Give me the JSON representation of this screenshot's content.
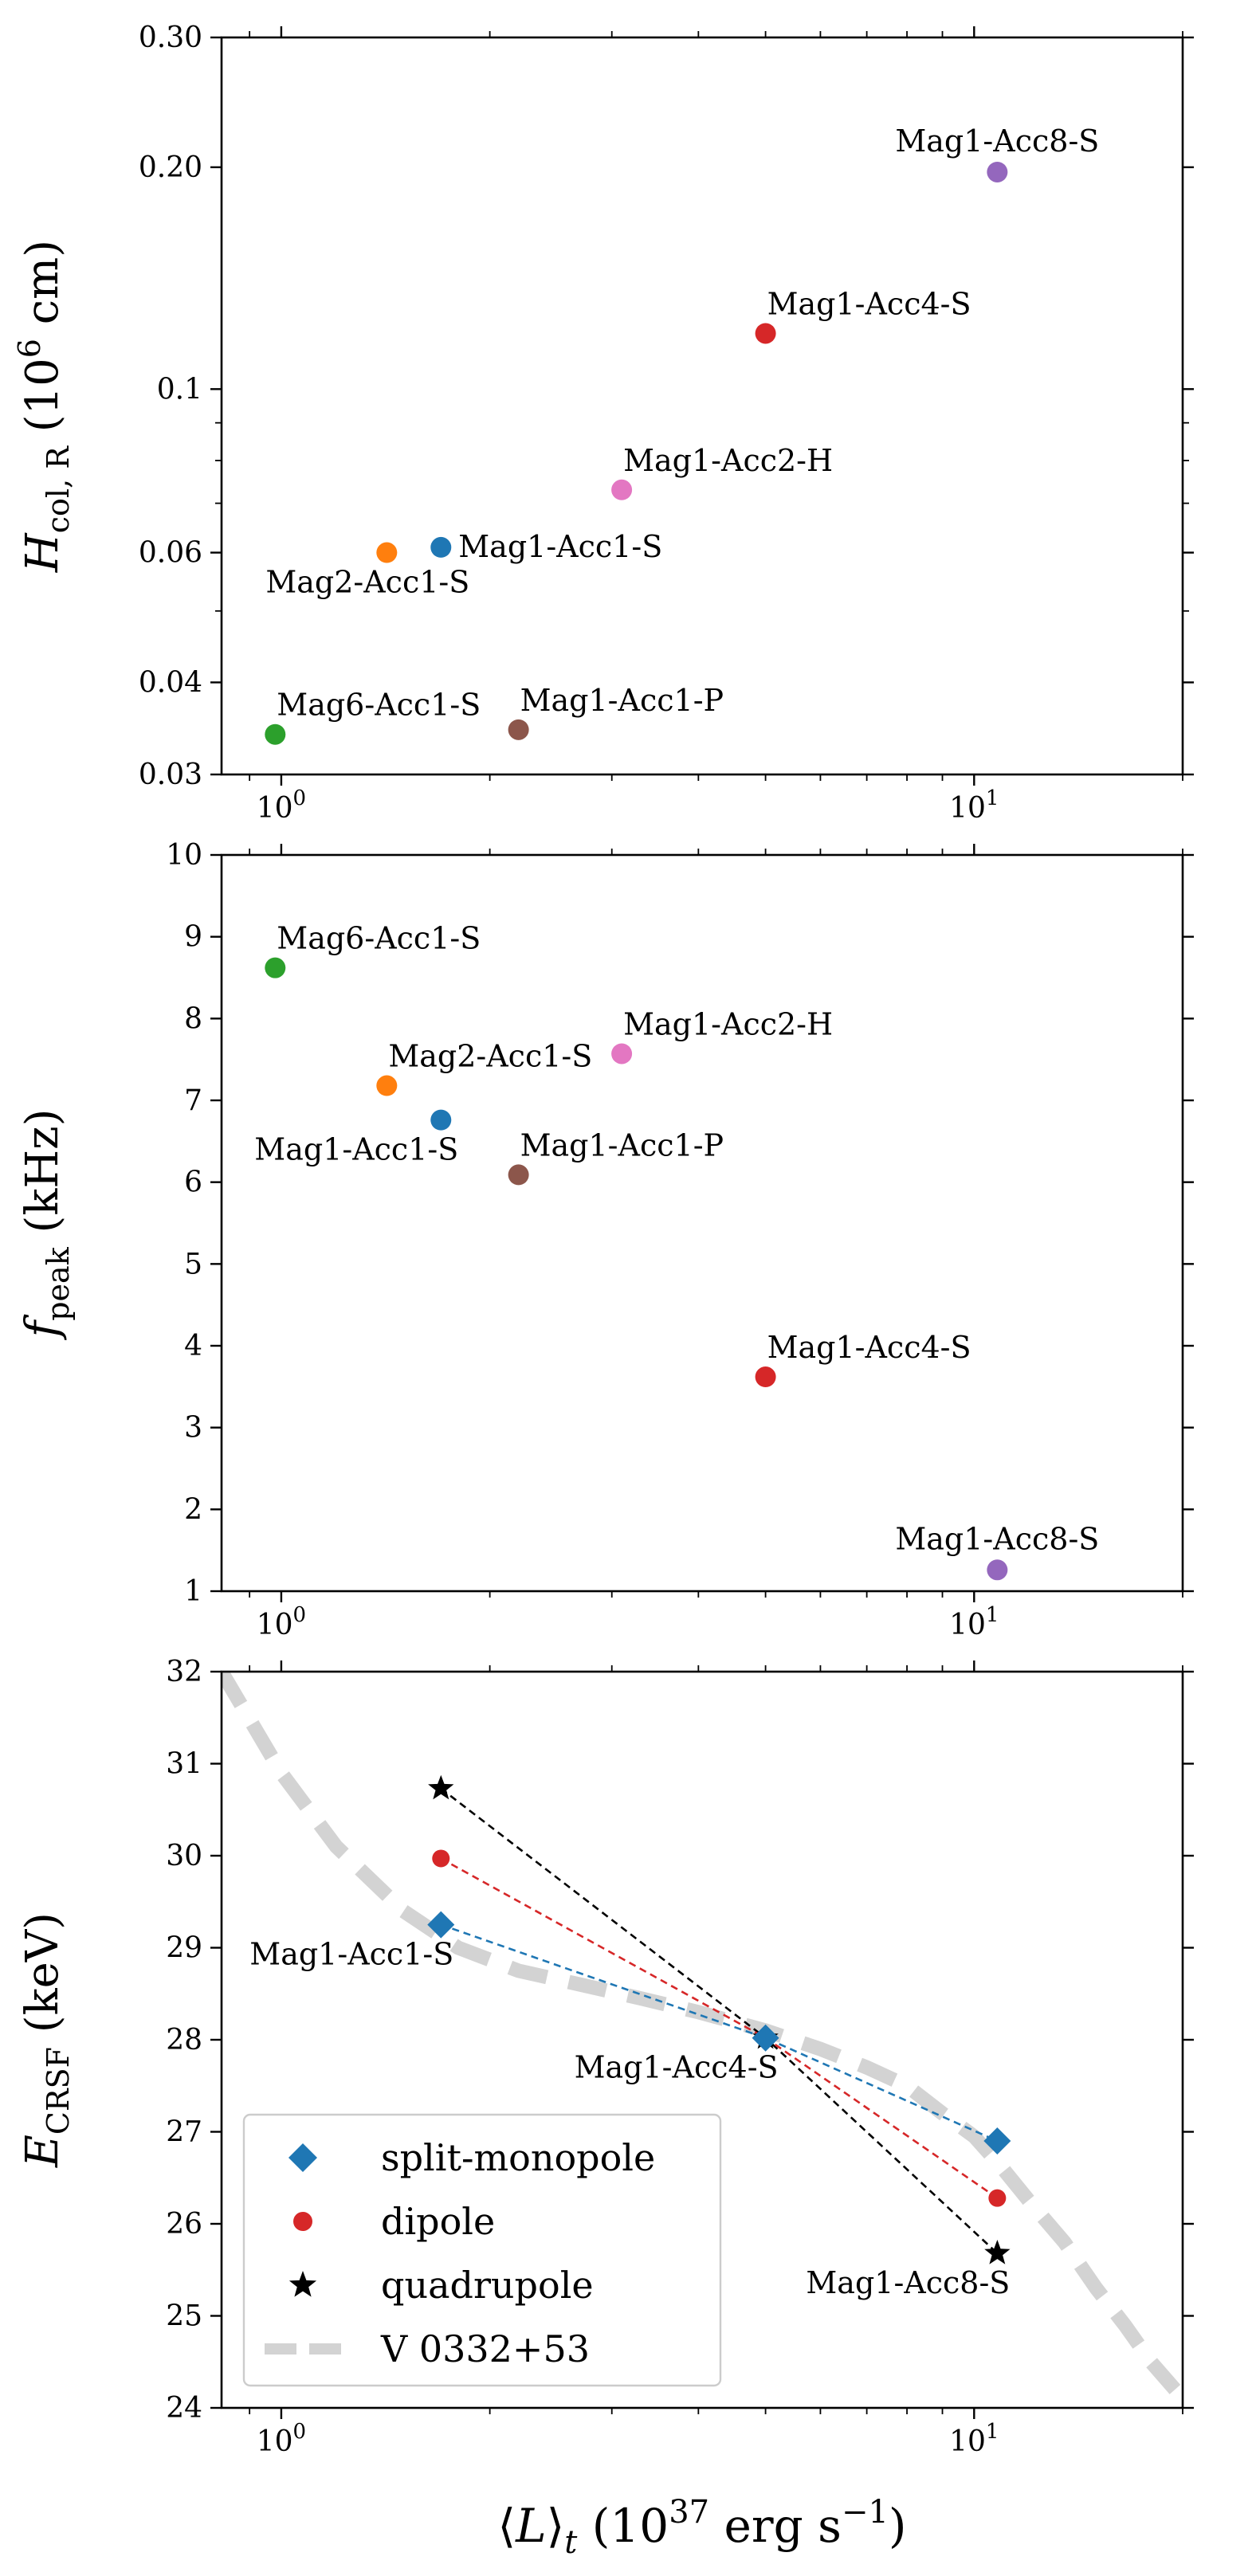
{
  "chart_data": [
    {
      "type": "scatter",
      "title": "",
      "xscale": "log",
      "yscale": "log",
      "xlim": [
        0.82,
        20.0
      ],
      "ylim": [
        0.03,
        0.3
      ],
      "ylabel": {
        "main": "H",
        "sub": "col, R",
        "rest": " (10",
        "sup": "6",
        "end": " cm)"
      },
      "xticks": [
        {
          "v": 1,
          "base": "10",
          "exp": "0"
        },
        {
          "v": 10,
          "base": "10",
          "exp": "1"
        }
      ],
      "yticks": [
        {
          "v": 0.03,
          "label": "0.03"
        },
        {
          "v": 0.04,
          "label": "0.04"
        },
        {
          "v": 0.06,
          "label": "0.06"
        },
        {
          "v": 0.1,
          "label": "0.1"
        },
        {
          "v": 0.2,
          "label": "0.20"
        },
        {
          "v": 0.3,
          "label": "0.30"
        }
      ],
      "points": [
        {
          "name": "Mag1-Acc8-S",
          "x": 10.8,
          "y": 0.197,
          "color": "#9467bd",
          "label_pos": "above"
        },
        {
          "name": "Mag1-Acc4-S",
          "x": 5.0,
          "y": 0.119,
          "color": "#d62728",
          "label_pos": "above-right"
        },
        {
          "name": "Mag1-Acc2-H",
          "x": 3.1,
          "y": 0.073,
          "color": "#e377c2",
          "label_pos": "above-right"
        },
        {
          "name": "Mag1-Acc1-S",
          "x": 1.7,
          "y": 0.061,
          "color": "#1f77b4",
          "label_pos": "right"
        },
        {
          "name": "Mag2-Acc1-S",
          "x": 1.42,
          "y": 0.06,
          "color": "#ff7f0e",
          "label_pos": "below"
        },
        {
          "name": "Mag1-Acc1-P",
          "x": 2.2,
          "y": 0.0345,
          "color": "#8c564b",
          "label_pos": "above-right"
        },
        {
          "name": "Mag6-Acc1-S",
          "x": 0.98,
          "y": 0.034,
          "color": "#2ca02c",
          "label_pos": "above-right"
        }
      ]
    },
    {
      "type": "scatter",
      "title": "",
      "xscale": "log",
      "yscale": "linear",
      "xlim": [
        0.82,
        20.0
      ],
      "ylim": [
        1,
        10
      ],
      "ylabel": {
        "main": "f",
        "sub": "peak",
        "rest": " (kHz)"
      },
      "xticks": [
        {
          "v": 1,
          "base": "10",
          "exp": "0"
        },
        {
          "v": 10,
          "base": "10",
          "exp": "1"
        }
      ],
      "yticks": [
        {
          "v": 1,
          "label": "1"
        },
        {
          "v": 2,
          "label": "2"
        },
        {
          "v": 3,
          "label": "3"
        },
        {
          "v": 4,
          "label": "4"
        },
        {
          "v": 5,
          "label": "5"
        },
        {
          "v": 6,
          "label": "6"
        },
        {
          "v": 7,
          "label": "7"
        },
        {
          "v": 8,
          "label": "8"
        },
        {
          "v": 9,
          "label": "9"
        },
        {
          "v": 10,
          "label": "10"
        }
      ],
      "points": [
        {
          "name": "Mag6-Acc1-S",
          "x": 0.98,
          "y": 8.62,
          "color": "#2ca02c",
          "label_pos": "above-right"
        },
        {
          "name": "Mag1-Acc2-H",
          "x": 3.1,
          "y": 7.57,
          "color": "#e377c2",
          "label_pos": "above-right"
        },
        {
          "name": "Mag2-Acc1-S",
          "x": 1.42,
          "y": 7.18,
          "color": "#ff7f0e",
          "label_pos": "above-right"
        },
        {
          "name": "Mag1-Acc1-S",
          "x": 1.7,
          "y": 6.76,
          "color": "#1f77b4",
          "label_pos": "below-left"
        },
        {
          "name": "Mag1-Acc1-P",
          "x": 2.2,
          "y": 6.09,
          "color": "#8c564b",
          "label_pos": "above-right"
        },
        {
          "name": "Mag1-Acc4-S",
          "x": 5.0,
          "y": 3.62,
          "color": "#d62728",
          "label_pos": "above-right"
        },
        {
          "name": "Mag1-Acc8-S",
          "x": 10.8,
          "y": 1.26,
          "color": "#9467bd",
          "label_pos": "above"
        }
      ]
    },
    {
      "type": "line",
      "title": "",
      "xscale": "log",
      "yscale": "linear",
      "xlim": [
        0.82,
        20.0
      ],
      "ylim": [
        24,
        32
      ],
      "xlabel": {
        "pre": "⟨",
        "main": "L",
        "post": "⟩",
        "sub": "t",
        "rest": " (10",
        "sup": "37",
        "end": " erg s",
        "sup2": "−1",
        "end2": ")"
      },
      "ylabel": {
        "main": "E",
        "sub": "CRSF",
        "rest": " (keV)"
      },
      "xticks": [
        {
          "v": 1,
          "base": "10",
          "exp": "0"
        },
        {
          "v": 10,
          "base": "10",
          "exp": "1"
        }
      ],
      "yticks": [
        {
          "v": 24,
          "label": "24"
        },
        {
          "v": 25,
          "label": "25"
        },
        {
          "v": 26,
          "label": "26"
        },
        {
          "v": 27,
          "label": "27"
        },
        {
          "v": 28,
          "label": "28"
        },
        {
          "v": 29,
          "label": "29"
        },
        {
          "v": 30,
          "label": "30"
        },
        {
          "v": 31,
          "label": "31"
        },
        {
          "v": 32,
          "label": "32"
        }
      ],
      "reference_curve": {
        "name": "V 0332+53",
        "color": "#d3d3d3",
        "x": [
          0.82,
          1.0,
          1.2,
          1.5,
          1.8,
          2.2,
          2.7,
          3.3,
          4.0,
          5.0,
          6.0,
          7.0,
          8.0,
          9.0,
          10.0,
          11.0,
          12.0,
          13.5,
          15.0,
          16.5,
          18.0,
          19.5
        ],
        "y": [
          32.0,
          30.9,
          30.1,
          29.4,
          29.0,
          28.75,
          28.6,
          28.45,
          28.3,
          28.1,
          27.9,
          27.7,
          27.5,
          27.2,
          26.95,
          26.6,
          26.25,
          25.8,
          25.3,
          24.9,
          24.5,
          24.2
        ]
      },
      "series": [
        {
          "name": "split-monopole",
          "marker": "diamond",
          "color": "#1f77b4",
          "x": [
            1.7,
            5.0,
            10.8
          ],
          "y": [
            29.25,
            28.02,
            26.9
          ]
        },
        {
          "name": "dipole",
          "marker": "circle",
          "color": "#d62728",
          "x": [
            1.7,
            5.0,
            10.8
          ],
          "y": [
            29.97,
            28.02,
            26.28
          ]
        },
        {
          "name": "quadrupole",
          "marker": "star",
          "color": "#000000",
          "x": [
            1.7,
            5.0,
            10.8
          ],
          "y": [
            30.73,
            28.02,
            25.68
          ]
        }
      ],
      "annotations": [
        {
          "text": "Mag1-Acc1-S",
          "x": 1.7,
          "y": 29.25,
          "pos": "below-left"
        },
        {
          "text": "Mag1-Acc4-S",
          "x": 5.0,
          "y": 28.02,
          "pos": "below-left"
        },
        {
          "text": "Mag1-Acc8-S",
          "x": 10.8,
          "y": 25.68,
          "pos": "below-left"
        }
      ],
      "legend": {
        "placement": "lower-left",
        "entries": [
          "split-monopole",
          "dipole",
          "quadrupole",
          "V 0332+53"
        ]
      }
    }
  ]
}
